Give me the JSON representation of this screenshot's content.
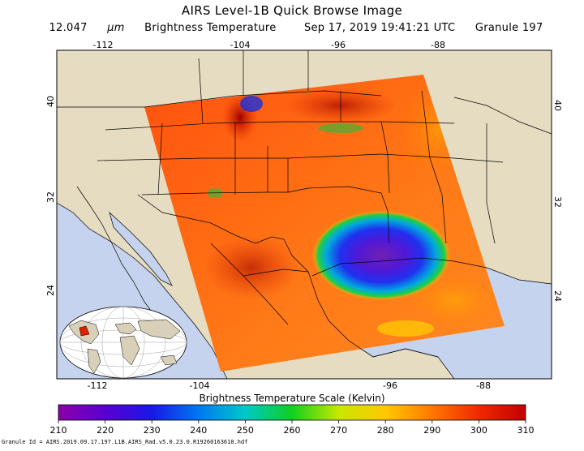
{
  "header": {
    "title": "AIRS Level-1B Quick Browse Image",
    "wavelength_value": "12.047",
    "wavelength_unit": "µm",
    "quantity": "Brightness Temperature",
    "datetime": "Sep 17, 2019 19:41:21 UTC",
    "granule": "Granule 197"
  },
  "map": {
    "lon_ticks_top": [
      "-112",
      "-104",
      "-96",
      "-88"
    ],
    "lon_ticks_bottom": [
      "-112",
      "-104",
      "-96",
      "-88"
    ],
    "lat_ticks_left": [
      "40",
      "32",
      "24"
    ],
    "lat_ticks_right": [
      "40",
      "32",
      "24"
    ],
    "colors": {
      "land": "#e6dcc2",
      "water": "#c5d3ee",
      "border": "#000000"
    }
  },
  "colorbar": {
    "title": "Brightness Temperature Scale (Kelvin)",
    "ticks": [
      "210",
      "220",
      "230",
      "240",
      "250",
      "260",
      "270",
      "280",
      "290",
      "300",
      "310"
    ],
    "range": [
      210,
      310
    ]
  },
  "footer": {
    "granule_id": "Granule Id = AIRS.2019.09.17.197.L1B.AIRS_Rad.v5.0.23.0.R19260163610.hdf"
  }
}
